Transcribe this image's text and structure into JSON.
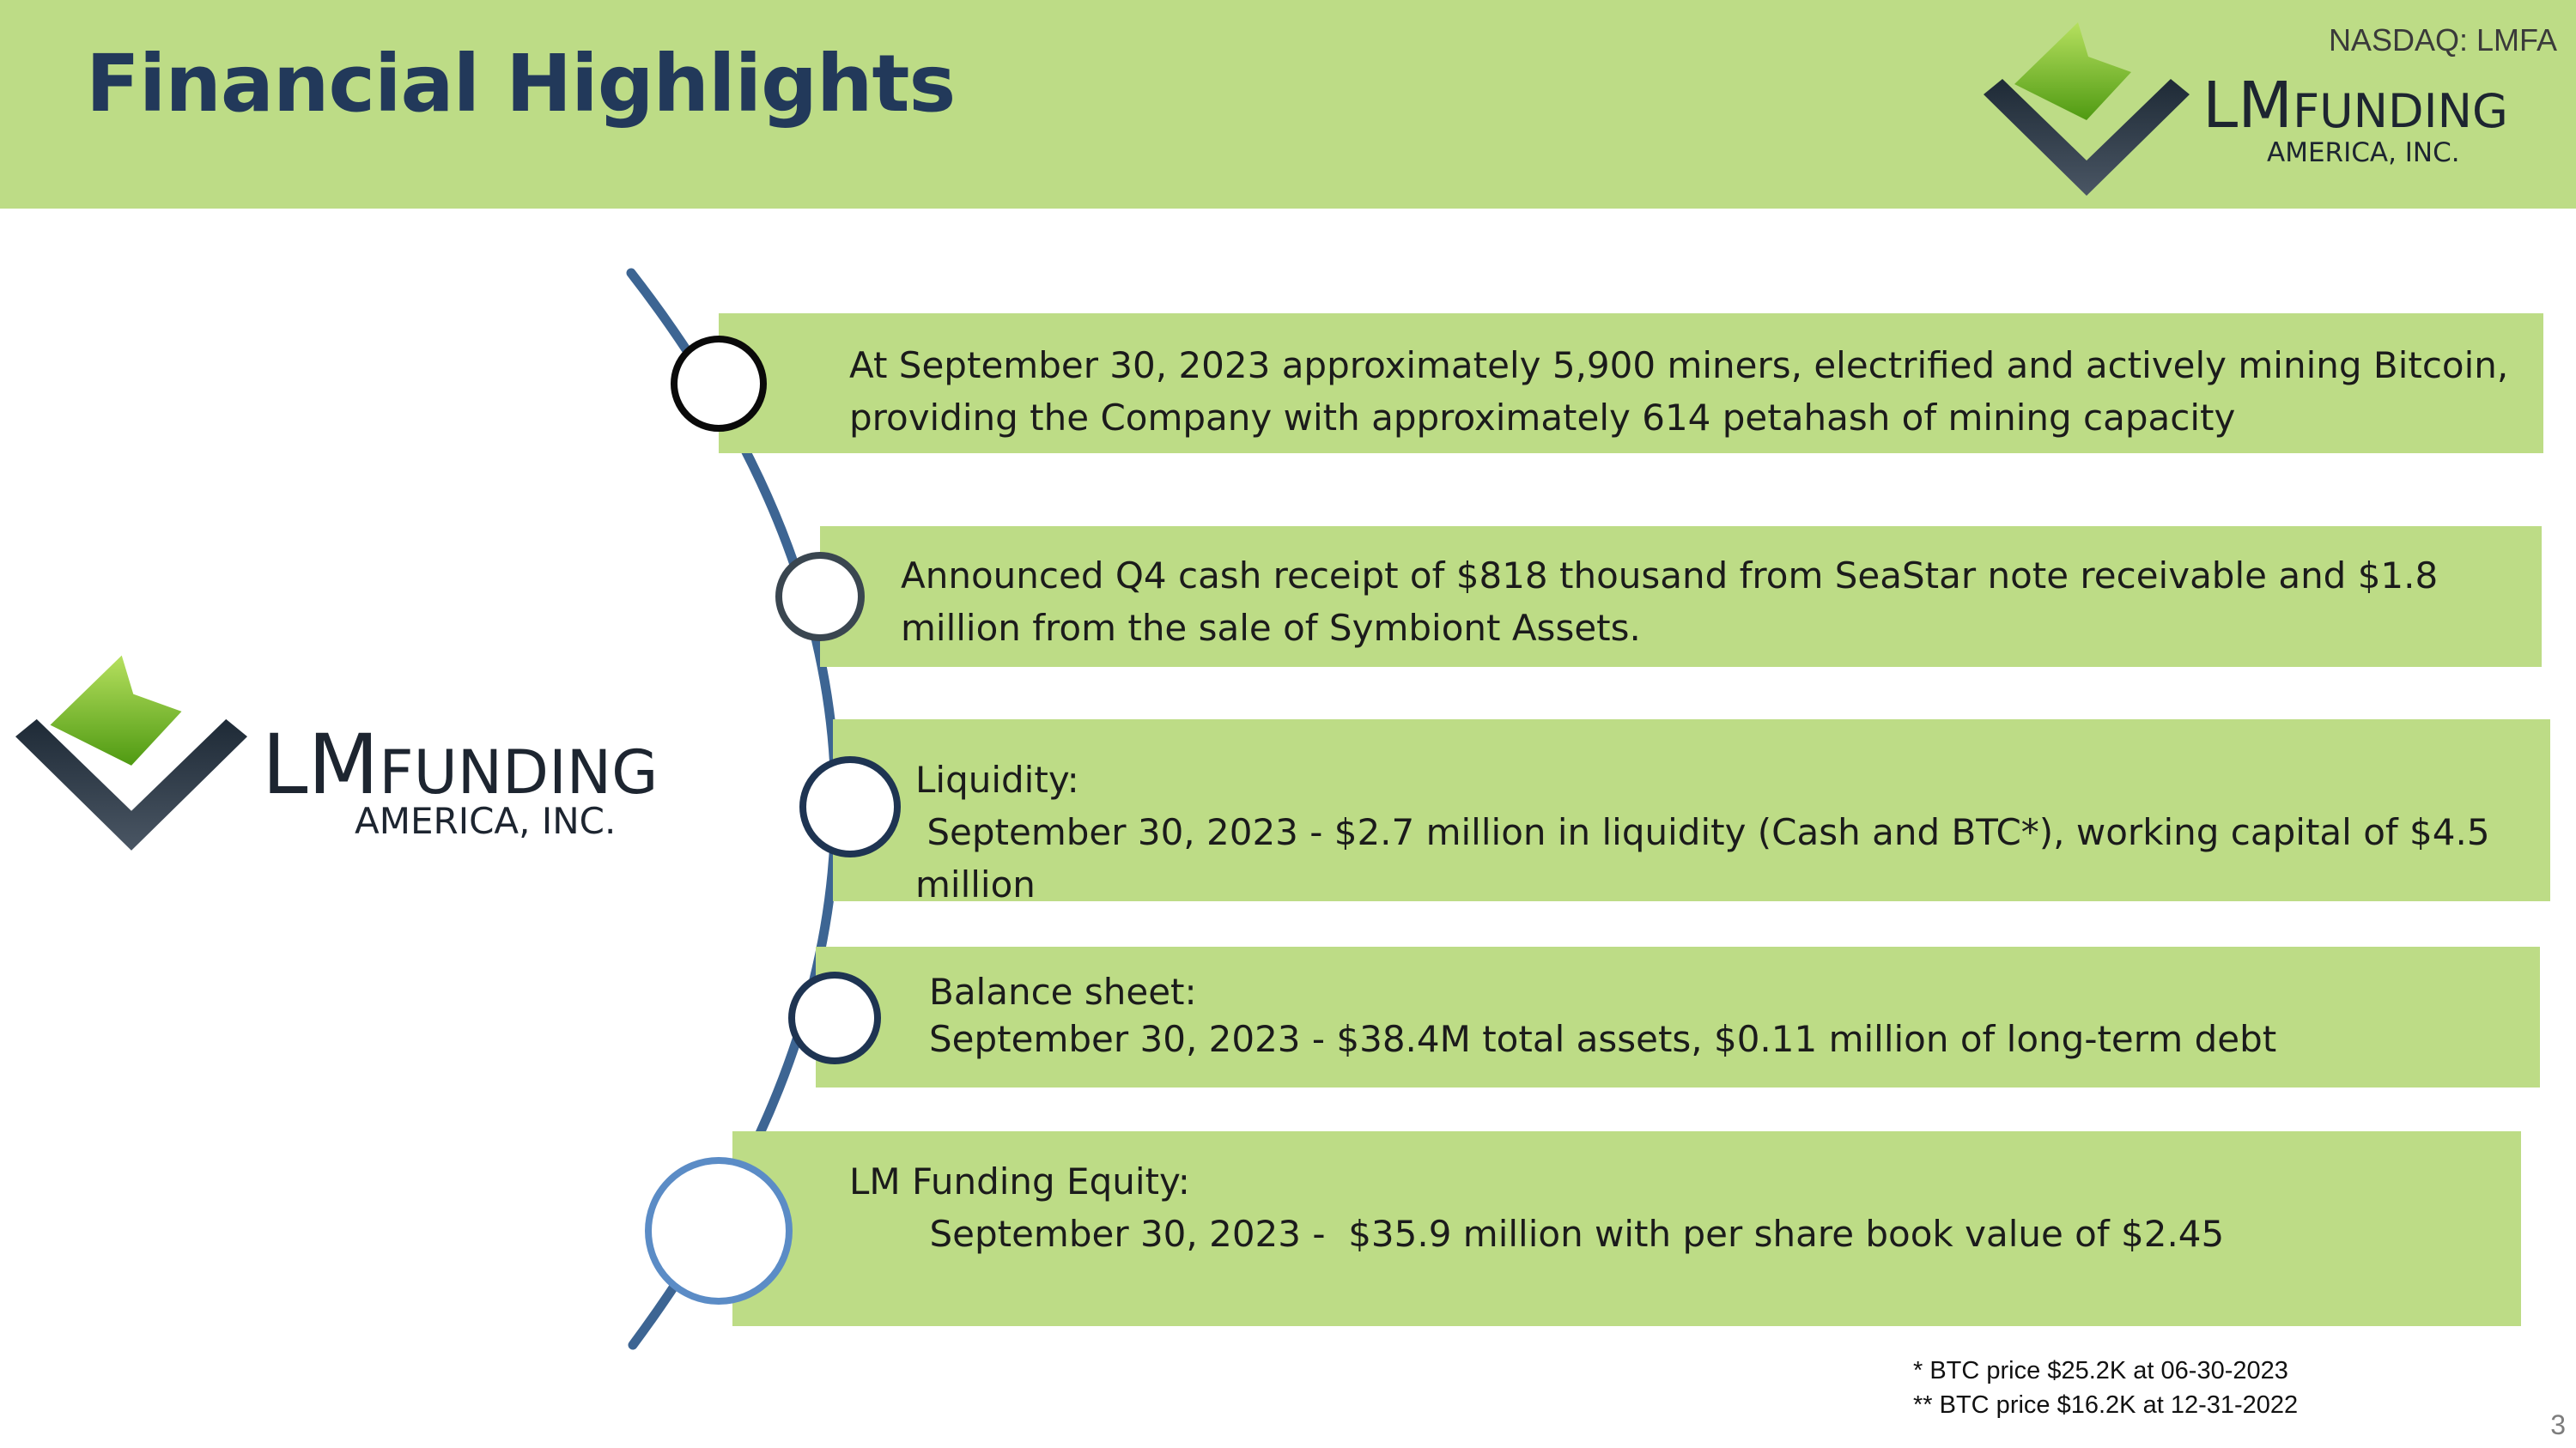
{
  "header": {
    "title": "Financial Highlights",
    "ticker": "NASDAQ: LMFA"
  },
  "logo": {
    "name_main": "LM",
    "name_sub": "FUNDING",
    "tagline": "AMERICA, INC."
  },
  "highlights": [
    {
      "lines": [
        "At September 30, 2023 approximately 5,900 miners, electrified and actively mining Bitcoin,",
        "providing the Company with approximately 614 petahash of mining capacity"
      ]
    },
    {
      "lines": [
        "Announced Q4 cash receipt of $818 thousand from SeaStar note receivable and $1.8",
        "million from the sale of Symbiont Assets."
      ]
    },
    {
      "lines": [
        "Liquidity:",
        " September 30, 2023 - $2.7 million in liquidity (Cash and BTC*), working capital of $4.5",
        "million"
      ]
    },
    {
      "lines": [
        "Balance sheet:",
        "September 30, 2023 - $38.4M total assets, $0.11 million of long-term debt"
      ]
    },
    {
      "lines": [
        "LM Funding Equity:",
        "       September 30, 2023 -  $35.9 million with per share book value of $2.45"
      ]
    }
  ],
  "footnotes": [
    "* BTC price $25.2K at 06-30-2023",
    "** BTC price $16.2K at 12-31-2022"
  ],
  "page_number": "3",
  "colors": {
    "header_green": "#bddc86",
    "title_navy": "#22395a",
    "arc_blue": "#3d6593",
    "logo_green": "#7cbd1e",
    "logo_dark": "#1d2530"
  }
}
